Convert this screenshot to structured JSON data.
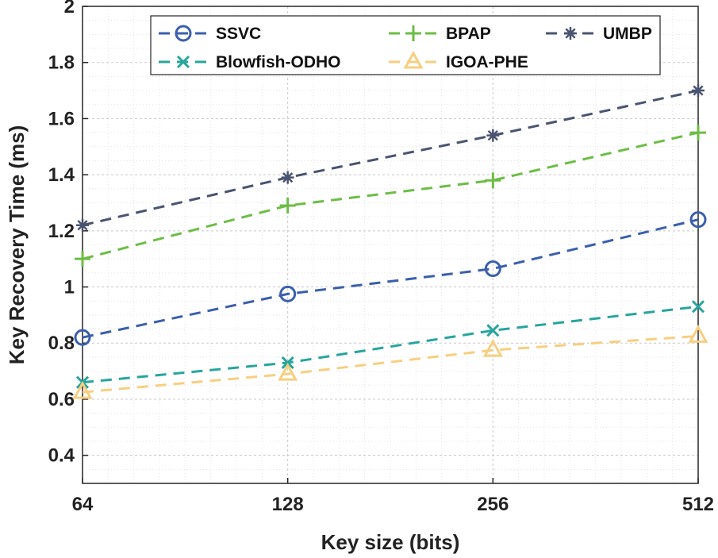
{
  "chart_data": {
    "type": "line",
    "title": "",
    "xlabel": "Key size (bits)",
    "ylabel": "Key Recovery Time (ms)",
    "categories": [
      "64",
      "128",
      "256",
      "512"
    ],
    "ylim": [
      0.3,
      2.0
    ],
    "yticks": [
      0.4,
      0.6,
      0.8,
      1,
      1.2,
      1.4,
      1.6,
      1.8,
      2
    ],
    "ytick_labels": [
      "0.4",
      "0.6",
      "0.8",
      "1",
      "1.2",
      "1.4",
      "1.6",
      "1.8",
      "2"
    ],
    "grid": true,
    "legend_position": "top",
    "series": [
      {
        "name": "SSVC",
        "values": [
          0.82,
          0.975,
          1.065,
          1.24
        ],
        "color": "#3b5fae",
        "marker": "circle"
      },
      {
        "name": "BPAP",
        "values": [
          1.1,
          1.29,
          1.38,
          1.55
        ],
        "color": "#6cbd45",
        "marker": "plus"
      },
      {
        "name": "UMBP",
        "values": [
          1.22,
          1.39,
          1.54,
          1.7
        ],
        "color": "#4a5470",
        "marker": "asterisk"
      },
      {
        "name": "Blowfish-ODHO",
        "values": [
          0.66,
          0.73,
          0.845,
          0.93
        ],
        "color": "#27a59c",
        "marker": "x"
      },
      {
        "name": "IGOA-PHE",
        "values": [
          0.625,
          0.69,
          0.775,
          0.825
        ],
        "color": "#f7cf80",
        "marker": "triangle"
      }
    ]
  }
}
